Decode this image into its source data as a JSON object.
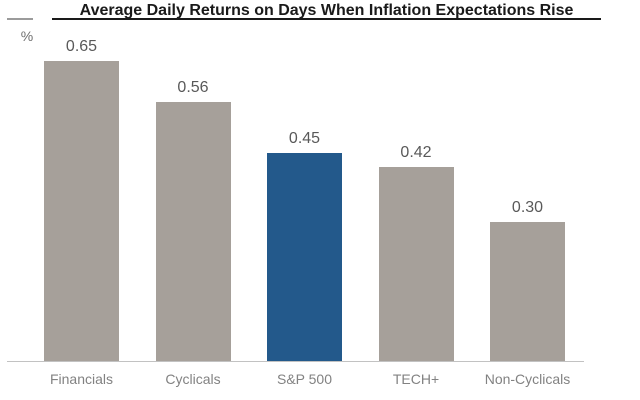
{
  "chart_data": {
    "type": "bar",
    "title": "Average Daily Returns on Days When Inflation Expectations Rise",
    "ylabel": "%",
    "categories": [
      "Financials",
      "Cyclicals",
      "S&P 500",
      "TECH+",
      "Non-Cyclicals"
    ],
    "values": [
      0.65,
      0.56,
      0.45,
      0.42,
      0.3
    ],
    "value_labels": [
      "0.65",
      "0.56",
      "0.45",
      "0.42",
      "0.30"
    ],
    "highlight_index": 2,
    "ylim": [
      0,
      0.74
    ],
    "grid": false,
    "legend": false,
    "colors": {
      "bar": "#a6a09a",
      "highlight": "#23598b",
      "title": "#1a1a1a",
      "value_label": "#595959",
      "category_label": "#828282",
      "axis_line": "#c2c2c2",
      "unit_label": "#6e6e6e"
    }
  }
}
